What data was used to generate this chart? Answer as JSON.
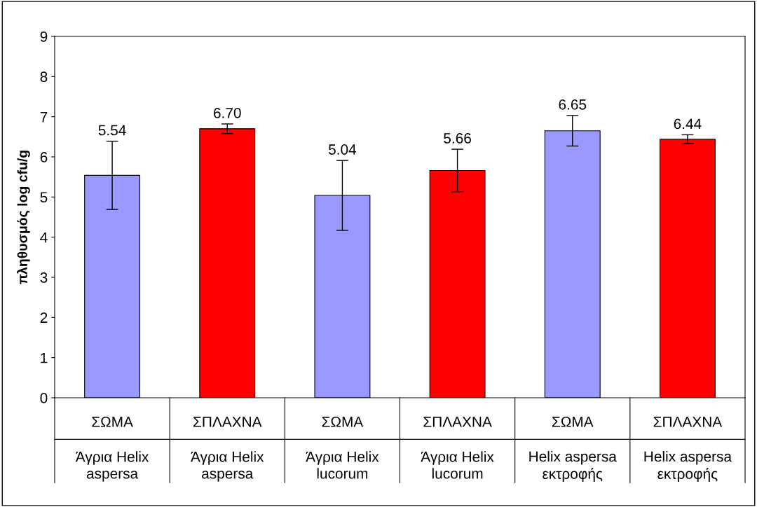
{
  "chart_data": {
    "type": "bar",
    "ylabel": "πληθυσμός log cfu/g",
    "categories": [
      "ΣΩΜΑ\nΆγρια Helix\naspersa",
      "ΣΠΛΑΧΝΑ\nΆγρια Helix\naspersa",
      "ΣΩΜΑ\nΆγρια Helix\nlucorum",
      "ΣΠΛΑΧΝΑ\nΆγρια Helix\nlucorum",
      "ΣΩΜΑ\nHelix aspersa\nεκτροφής",
      "ΣΠΛΑΧΝΑ\nHelix aspersa\nεκτροφής"
    ],
    "values": [
      5.54,
      6.7,
      5.04,
      5.66,
      6.65,
      6.44
    ],
    "colors": [
      "#9999ff",
      "#ff0000",
      "#9999ff",
      "#ff0000",
      "#9999ff",
      "#ff0000"
    ],
    "errors": [
      0.85,
      0.12,
      0.87,
      0.53,
      0.38,
      0.11
    ],
    "value_labels": [
      "5.54",
      "6.70",
      "5.04",
      "5.66",
      "6.65",
      "6.44"
    ],
    "ylim": [
      0,
      9
    ],
    "yticks": [
      0,
      1,
      2,
      3,
      4,
      5,
      6,
      7,
      8,
      9
    ],
    "grid": false,
    "legend": false
  }
}
